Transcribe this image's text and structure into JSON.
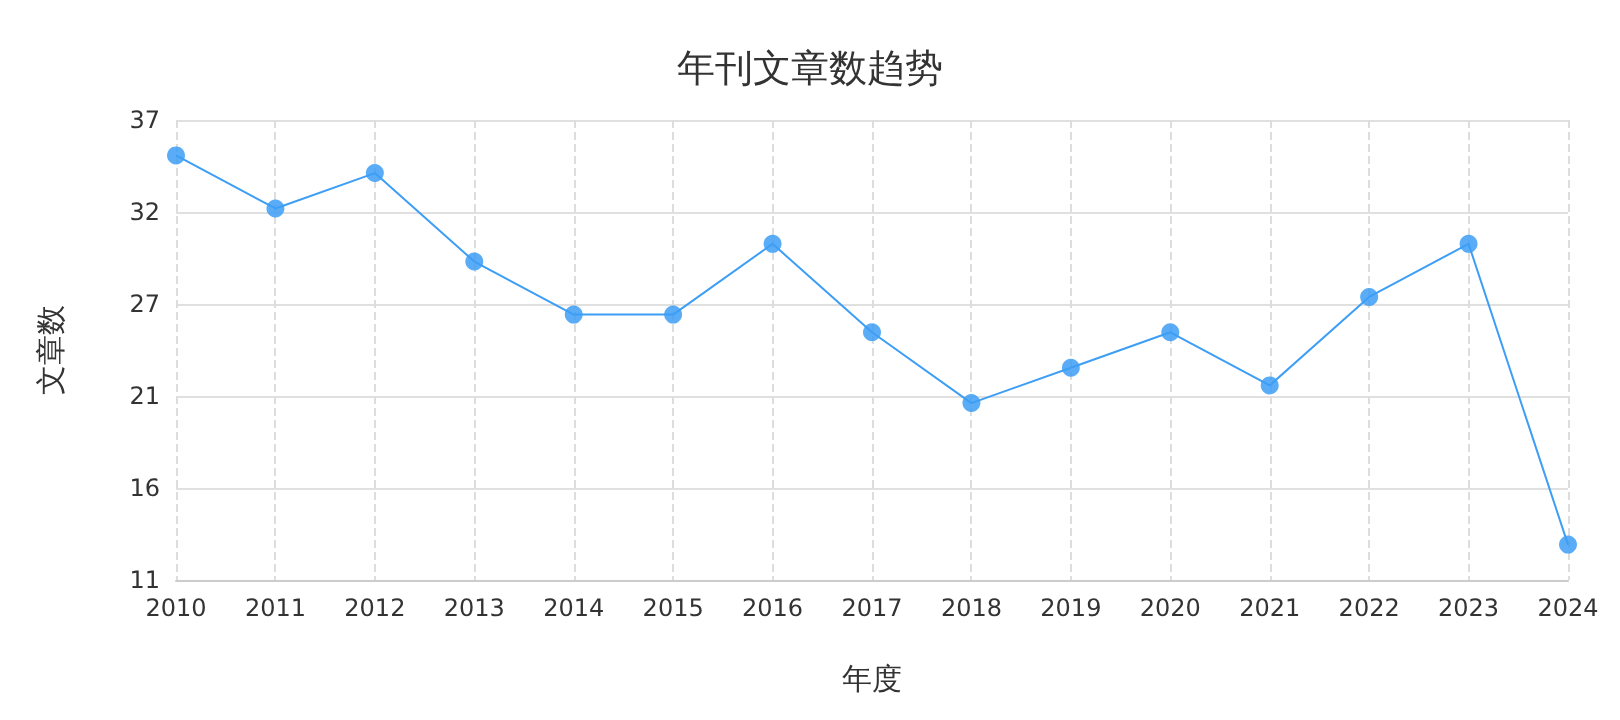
{
  "chart_data": {
    "type": "line",
    "title": "年刊文章数趋势",
    "xlabel": "年度",
    "ylabel": "文章数",
    "categories": [
      "2010",
      "2011",
      "2012",
      "2013",
      "2014",
      "2015",
      "2016",
      "2017",
      "2018",
      "2019",
      "2020",
      "2021",
      "2022",
      "2023",
      "2024"
    ],
    "series": [
      {
        "color": "#3d9ef5",
        "values": [
          35,
          32,
          34,
          29,
          26,
          26,
          30,
          25,
          21,
          23,
          25,
          22,
          27,
          30,
          13
        ]
      }
    ],
    "ylim": [
      11,
      37
    ],
    "yticks": [
      11,
      {
        "value": 16.2,
        "label": "16"
      },
      {
        "value": 21.4,
        "label": "21"
      },
      {
        "value": 26.6,
        "label": "27"
      },
      {
        "value": 31.8,
        "label": "32"
      },
      37
    ],
    "grid": true,
    "marker": "circle",
    "line_style": "solid"
  }
}
